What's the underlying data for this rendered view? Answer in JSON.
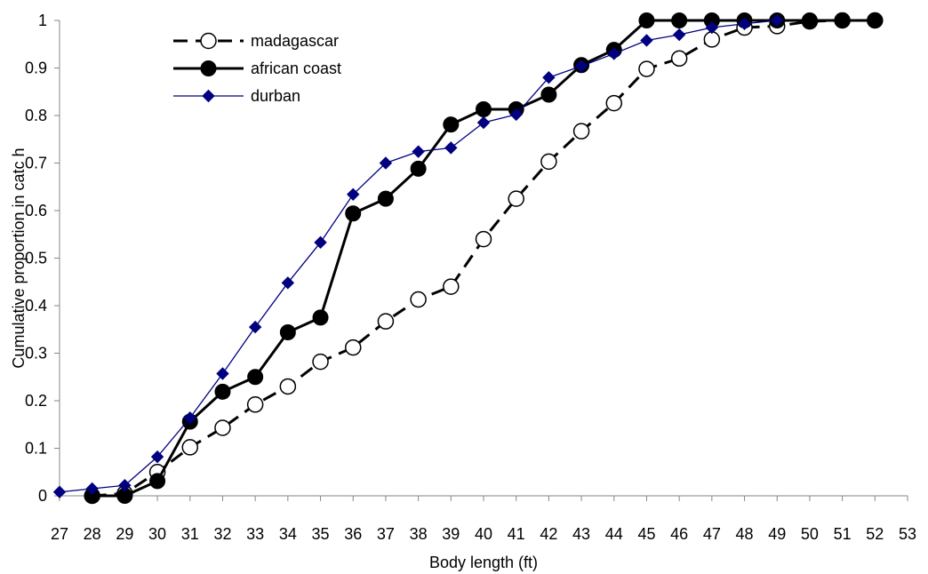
{
  "chart_data": {
    "type": "line",
    "title": "",
    "xlabel": "Body length (ft)",
    "ylabel": "Cumulative proportion in catc h",
    "xlim": [
      27,
      53
    ],
    "ylim": [
      0,
      1
    ],
    "x_ticks": [
      27,
      28,
      29,
      30,
      31,
      32,
      33,
      34,
      35,
      36,
      37,
      38,
      39,
      40,
      41,
      42,
      43,
      44,
      45,
      46,
      47,
      48,
      49,
      50,
      51,
      52,
      53
    ],
    "y_ticks": [
      "0",
      "0.1",
      "0.2",
      "0.3",
      "0.4",
      "0.5",
      "0.6",
      "0.7",
      "0.8",
      "0.9",
      "1"
    ],
    "grid": false,
    "legend_position": "top-left",
    "series": [
      {
        "name": "madagascar",
        "style": "dashed",
        "color": "#000000",
        "marker": "open-circle",
        "x": [
          28,
          29,
          30,
          31,
          32,
          33,
          34,
          35,
          36,
          37,
          38,
          39,
          40,
          41,
          42,
          43,
          44,
          45,
          46,
          47,
          48,
          49,
          50,
          51,
          52
        ],
        "y": [
          0.0,
          0.005,
          0.05,
          0.102,
          0.143,
          0.192,
          0.23,
          0.282,
          0.312,
          0.367,
          0.413,
          0.44,
          0.54,
          0.625,
          0.703,
          0.767,
          0.826,
          0.898,
          0.92,
          0.96,
          0.985,
          0.988,
          0.998,
          1.0,
          1.0
        ]
      },
      {
        "name": "african coast",
        "style": "solid",
        "color": "#000000",
        "marker": "filled-circle",
        "x": [
          28,
          29,
          30,
          31,
          32,
          33,
          34,
          35,
          36,
          37,
          38,
          39,
          40,
          41,
          42,
          43,
          44,
          45,
          46,
          47,
          48,
          49,
          50,
          51,
          52
        ],
        "y": [
          0.0,
          0.0,
          0.031,
          0.156,
          0.219,
          0.25,
          0.344,
          0.375,
          0.594,
          0.625,
          0.688,
          0.781,
          0.813,
          0.813,
          0.844,
          0.906,
          0.938,
          1.0,
          1.0,
          1.0,
          1.0,
          1.0,
          1.0,
          1.0,
          1.0
        ]
      },
      {
        "name": "durban",
        "style": "solid",
        "color": "#000080",
        "marker": "filled-diamond",
        "x": [
          27,
          28,
          29,
          30,
          31,
          32,
          33,
          34,
          35,
          36,
          37,
          38,
          39,
          40,
          41,
          42,
          43,
          44,
          45,
          46,
          47,
          48,
          49
        ],
        "y": [
          0.008,
          0.015,
          0.022,
          0.082,
          0.164,
          0.257,
          0.355,
          0.448,
          0.533,
          0.634,
          0.7,
          0.724,
          0.732,
          0.785,
          0.802,
          0.88,
          0.904,
          0.93,
          0.958,
          0.97,
          0.985,
          0.993,
          1.0
        ]
      }
    ]
  }
}
